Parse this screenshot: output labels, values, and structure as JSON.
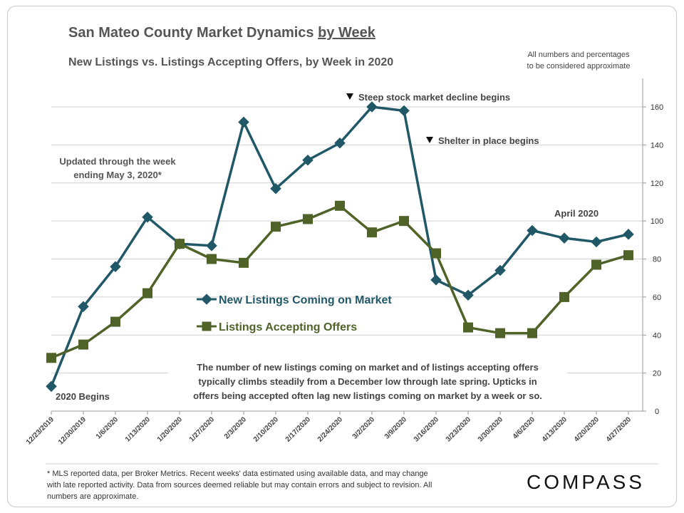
{
  "chart_data": {
    "type": "line",
    "title": "San Mateo County Market Dynamics",
    "title_suffix": "by Week",
    "subtitle": "New Listings vs. Listings Accepting Offers, by Week in 2020",
    "note": [
      "All numbers and percentages",
      "to be considered approximate"
    ],
    "x": [
      "12/23/2019",
      "12/30/2019",
      "1/6/2020",
      "1/13/2020",
      "1/20/2020",
      "1/27/2020",
      "2/3/2020",
      "2/10/2020",
      "2/17/2020",
      "2/24/2020",
      "3/2/2020",
      "3/9/2020",
      "3/16/2020",
      "3/23/2020",
      "3/30/2020",
      "4/6/2020",
      "4/13/2020",
      "4/20/2020",
      "4/27/2020"
    ],
    "ylim": [
      0,
      175
    ],
    "yticks": [
      0,
      20,
      40,
      60,
      80,
      100,
      120,
      140,
      160
    ],
    "grid": true,
    "series": [
      {
        "name": "New Listings Coming on Market",
        "color": "#215867",
        "marker": "diamond",
        "values": [
          13,
          55,
          76,
          102,
          88,
          87,
          152,
          117,
          132,
          141,
          160,
          158,
          69,
          61,
          74,
          95,
          91,
          89,
          93
        ]
      },
      {
        "name": "Listings Accepting Offers",
        "color": "#4f6228",
        "marker": "square",
        "values": [
          28,
          35,
          47,
          62,
          88,
          80,
          78,
          97,
          101,
          108,
          94,
          100,
          83,
          44,
          41,
          41,
          60,
          77,
          82
        ]
      }
    ],
    "annotations": {
      "updated": [
        "Updated through the week",
        "ending May 3, 2020*"
      ],
      "stock_decline": "Steep stock market decline begins",
      "shelter": "Shelter in place begins",
      "april": "April 2020",
      "begins": "2020 Begins",
      "body": [
        "The number of new listings coming on market and of listings accepting offers",
        "typically climbs steadily from a December low through late spring. Upticks in",
        "offers being accepted often lag new listings coming on market by a week or so."
      ]
    }
  },
  "footnote": [
    "* MLS reported data, per Broker Metrics. Recent weeks' data estimated using available data, and may change",
    "with late reported activity. Data from sources deemed reliable but may contain errors and subject to revision. All",
    "numbers are approximate."
  ],
  "logo": "COMPASS"
}
